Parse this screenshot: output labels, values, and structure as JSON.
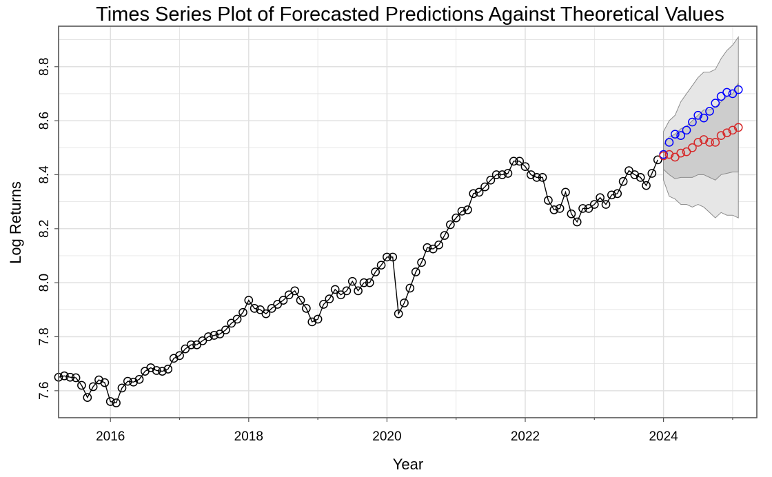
{
  "chart_data": {
    "type": "line",
    "title": "Times Series Plot of Forecasted Predictions Against Theoretical Values",
    "xlabel": "Year",
    "ylabel": "Log Returns",
    "xlim": [
      2015.25,
      2025.35
    ],
    "ylim": [
      7.5,
      8.95
    ],
    "x_ticks": [
      2016,
      2018,
      2020,
      2022,
      2024
    ],
    "x_tick_labels": [
      "2016",
      "2018",
      "2020",
      "2022",
      "2024"
    ],
    "y_ticks": [
      7.6,
      7.8,
      8.0,
      8.2,
      8.4,
      8.6,
      8.8
    ],
    "y_tick_labels": [
      "7.6",
      "7.8",
      "8.0",
      "8.2",
      "8.4",
      "8.6",
      "8.8"
    ],
    "grid": true,
    "colors": {
      "observed": "#000000",
      "forecast": "#d62728",
      "theoretical": "#0000ff",
      "inner_band": "#c8c8c8",
      "outer_band": "#e6e6e6",
      "band_edge": "#8c8c8c",
      "grid": "#e0e0e0"
    },
    "series": [
      {
        "style": "line+open-circle",
        "color": "#000000",
        "x": [
          2015.25,
          2015.333,
          2015.417,
          2015.5,
          2015.583,
          2015.667,
          2015.75,
          2015.833,
          2015.917,
          2016.0,
          2016.083,
          2016.167,
          2016.25,
          2016.333,
          2016.417,
          2016.5,
          2016.583,
          2016.667,
          2016.75,
          2016.833,
          2016.917,
          2017.0,
          2017.083,
          2017.167,
          2017.25,
          2017.333,
          2017.417,
          2017.5,
          2017.583,
          2017.667,
          2017.75,
          2017.833,
          2017.917,
          2018.0,
          2018.083,
          2018.167,
          2018.25,
          2018.333,
          2018.417,
          2018.5,
          2018.583,
          2018.667,
          2018.75,
          2018.833,
          2018.917,
          2019.0,
          2019.083,
          2019.167,
          2019.25,
          2019.333,
          2019.417,
          2019.5,
          2019.583,
          2019.667,
          2019.75,
          2019.833,
          2019.917,
          2020.0,
          2020.083,
          2020.167,
          2020.25,
          2020.333,
          2020.417,
          2020.5,
          2020.583,
          2020.667,
          2020.75,
          2020.833,
          2020.917,
          2021.0,
          2021.083,
          2021.167,
          2021.25,
          2021.333,
          2021.417,
          2021.5,
          2021.583,
          2021.667,
          2021.75,
          2021.833,
          2021.917,
          2022.0,
          2022.083,
          2022.167,
          2022.25,
          2022.333,
          2022.417,
          2022.5,
          2022.583,
          2022.667,
          2022.75,
          2022.833,
          2022.917,
          2023.0,
          2023.083,
          2023.167,
          2023.25,
          2023.333,
          2023.417,
          2023.5,
          2023.583,
          2023.667,
          2023.75,
          2023.833,
          2023.917
        ],
        "values": [
          7.65,
          7.655,
          7.65,
          7.648,
          7.62,
          7.575,
          7.615,
          7.64,
          7.63,
          7.56,
          7.555,
          7.61,
          7.635,
          7.632,
          7.642,
          7.672,
          7.685,
          7.675,
          7.672,
          7.68,
          7.72,
          7.73,
          7.755,
          7.77,
          7.77,
          7.785,
          7.8,
          7.805,
          7.81,
          7.825,
          7.85,
          7.865,
          7.89,
          7.935,
          7.905,
          7.9,
          7.885,
          7.905,
          7.92,
          7.935,
          7.955,
          7.97,
          7.935,
          7.905,
          7.855,
          7.865,
          7.92,
          7.94,
          7.975,
          7.955,
          7.97,
          8.005,
          7.97,
          8.0,
          8.0,
          8.04,
          8.065,
          8.095,
          8.095,
          7.885,
          7.925,
          7.98,
          8.04,
          8.075,
          8.13,
          8.125,
          8.14,
          8.175,
          8.215,
          8.24,
          8.265,
          8.27,
          8.33,
          8.335,
          8.355,
          8.38,
          8.4,
          8.4,
          8.405,
          8.45,
          8.45,
          8.43,
          8.4,
          8.39,
          8.39,
          8.305,
          8.27,
          8.275,
          8.335,
          8.255,
          8.225,
          8.275,
          8.275,
          8.29,
          8.315,
          8.29,
          8.325,
          8.33,
          8.375,
          8.415,
          8.4,
          8.39,
          8.36,
          8.405,
          8.455
        ]
      },
      {
        "style": "open-circle",
        "color": "#0000ff",
        "x": [
          2024.0,
          2024.083,
          2024.167,
          2024.25,
          2024.333,
          2024.417,
          2024.5,
          2024.583,
          2024.667,
          2024.75,
          2024.833,
          2024.917,
          2025.0,
          2025.083
        ],
        "values": [
          8.475,
          8.52,
          8.55,
          8.545,
          8.565,
          8.595,
          8.62,
          8.61,
          8.635,
          8.665,
          8.69,
          8.705,
          8.7,
          8.715
        ]
      },
      {
        "style": "open-circle",
        "color": "#d62728",
        "x": [
          2024.0,
          2024.083,
          2024.167,
          2024.25,
          2024.333,
          2024.417,
          2024.5,
          2024.583,
          2024.667,
          2024.75,
          2024.833,
          2024.917,
          2025.0,
          2025.083
        ],
        "values": [
          8.47,
          8.475,
          8.465,
          8.48,
          8.485,
          8.5,
          8.52,
          8.53,
          8.52,
          8.52,
          8.545,
          8.555,
          8.565,
          8.575
        ]
      }
    ],
    "bands": [
      {
        "level": "outer",
        "x": [
          2024.0,
          2024.083,
          2024.167,
          2024.25,
          2024.333,
          2024.417,
          2024.5,
          2024.583,
          2024.667,
          2024.75,
          2024.833,
          2024.917,
          2025.0,
          2025.083
        ],
        "upper": [
          8.56,
          8.6,
          8.62,
          8.67,
          8.7,
          8.73,
          8.76,
          8.78,
          8.78,
          8.79,
          8.83,
          8.86,
          8.88,
          8.91
        ],
        "lower": [
          8.38,
          8.32,
          8.31,
          8.29,
          8.29,
          8.28,
          8.29,
          8.28,
          8.26,
          8.24,
          8.26,
          8.25,
          8.25,
          8.24
        ]
      },
      {
        "level": "inner",
        "x": [
          2024.0,
          2024.083,
          2024.167,
          2024.25,
          2024.333,
          2024.417,
          2024.5,
          2024.583,
          2024.667,
          2024.75,
          2024.833,
          2024.917,
          2025.0,
          2025.083
        ],
        "upper": [
          8.51,
          8.54,
          8.55,
          8.57,
          8.58,
          8.6,
          8.62,
          8.64,
          8.64,
          8.65,
          8.67,
          8.69,
          8.7,
          8.74
        ],
        "lower": [
          8.42,
          8.4,
          8.385,
          8.39,
          8.39,
          8.39,
          8.4,
          8.4,
          8.39,
          8.38,
          8.4,
          8.405,
          8.41,
          8.41
        ]
      }
    ]
  }
}
